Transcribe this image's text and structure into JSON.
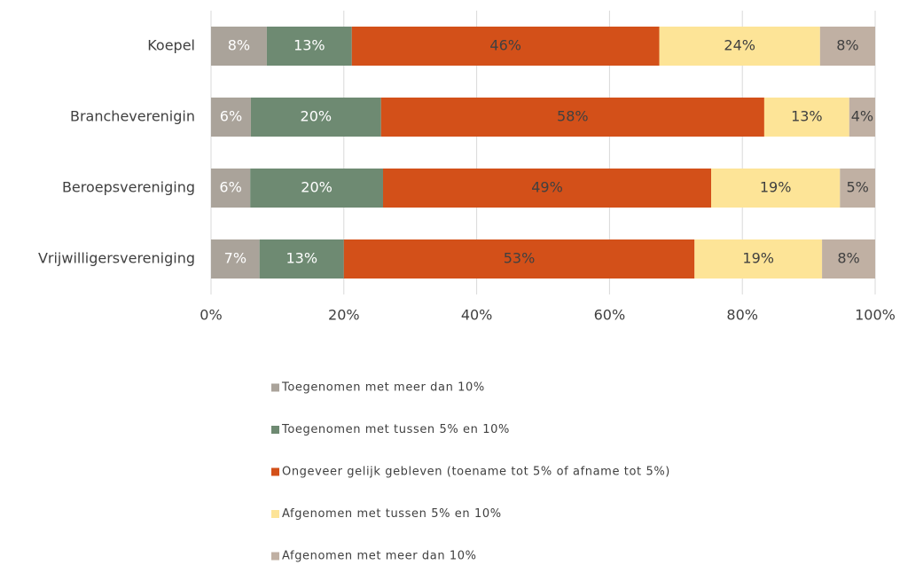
{
  "chart_data": {
    "type": "stacked-bar-horizontal",
    "categories": [
      "Koepel",
      "Brancheverenigin",
      "Beroepsvereniging",
      "Vrijwilligersvereniging"
    ],
    "series": [
      {
        "name": "Toegenomen met meer dan 10%",
        "color": "#aaa39a",
        "values": [
          8.4,
          6.0,
          5.9,
          7.3
        ],
        "value_labels": [
          "8%",
          "6%",
          "6%",
          "7%"
        ]
      },
      {
        "name": "Toegenomen met tussen 5% en 10%",
        "color": "#6e8a72",
        "values": [
          12.8,
          19.6,
          20.0,
          12.7
        ],
        "value_labels": [
          "13%",
          "20%",
          "20%",
          "13%"
        ]
      },
      {
        "name": "Ongeveer gelijk gebleven (toename tot 5% of afname tot 5%)",
        "color": "#d35019",
        "values": [
          46.3,
          57.7,
          49.4,
          52.8
        ],
        "value_labels": [
          "46%",
          "58%",
          "49%",
          "53%"
        ]
      },
      {
        "name": "Afgenomen met tussen 5% en 10%",
        "color": "#fde497",
        "values": [
          24.2,
          12.8,
          19.4,
          19.2
        ],
        "value_labels": [
          "24%",
          "13%",
          "19%",
          "19%"
        ]
      },
      {
        "name": "Afgenomen met meer dan 10%",
        "color": "#c0b0a3",
        "values": [
          8.3,
          3.9,
          5.3,
          8.0
        ],
        "value_labels": [
          "8%",
          "4%",
          "5%",
          "8%"
        ]
      }
    ],
    "xlim": [
      0,
      100
    ],
    "xticks": [
      {
        "value": 0,
        "label": "0%"
      },
      {
        "value": 20,
        "label": "20%"
      },
      {
        "value": 40,
        "label": "40%"
      },
      {
        "value": 60,
        "label": "60%"
      },
      {
        "value": 80,
        "label": "80%"
      },
      {
        "value": 100,
        "label": "100%"
      }
    ],
    "grid": true
  }
}
